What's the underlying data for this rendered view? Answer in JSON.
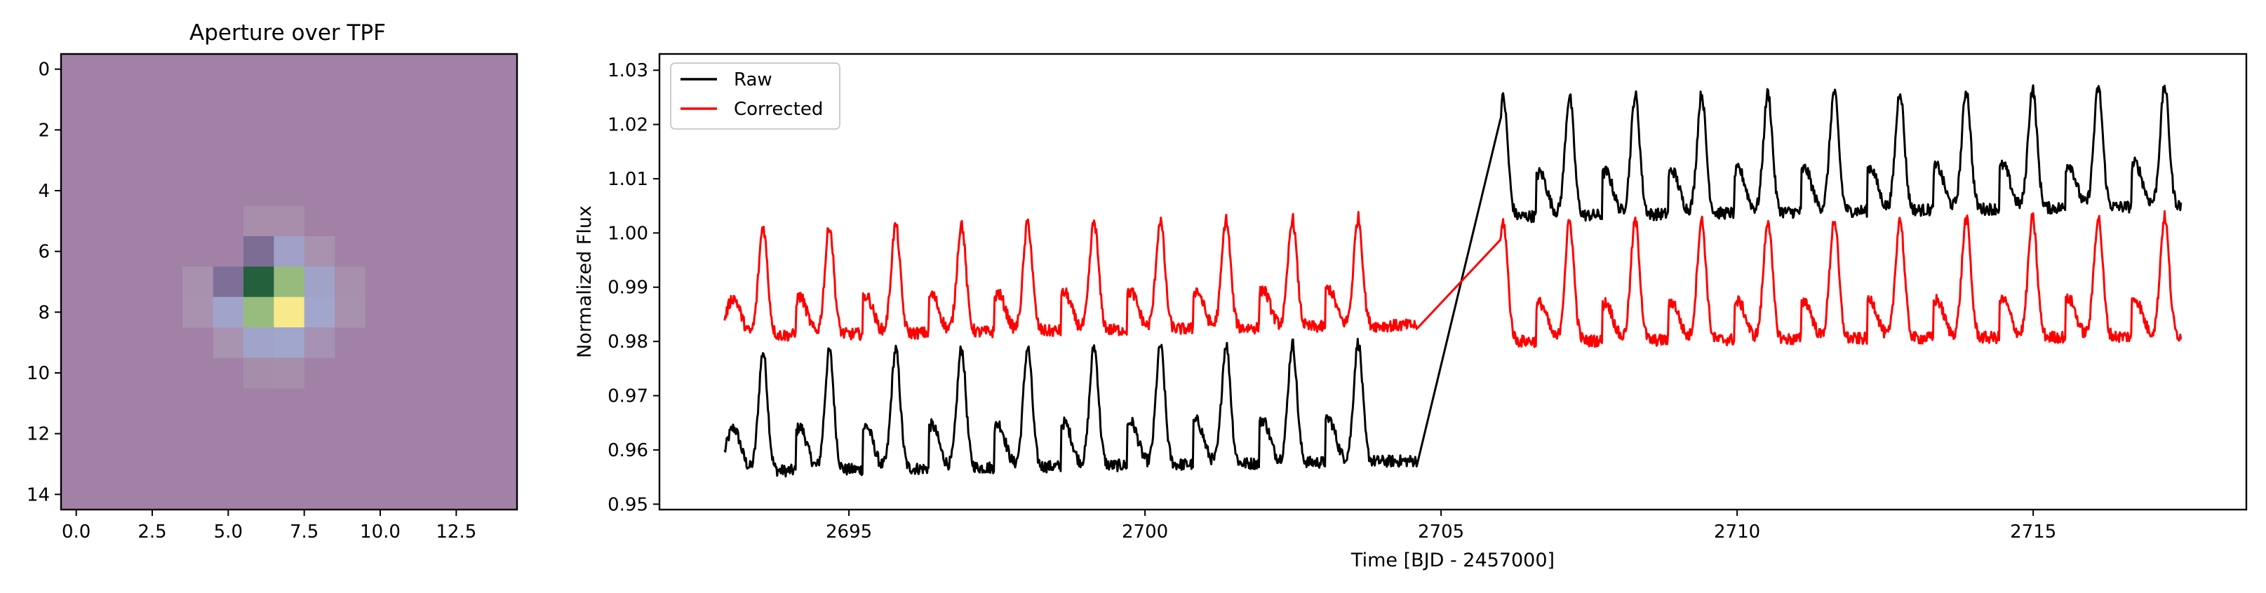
{
  "chart_data": [
    {
      "type": "heatmap",
      "title": "Aperture over TPF",
      "x_ticks": [
        "0.0",
        "2.5",
        "5.0",
        "7.5",
        "10.0",
        "12.5"
      ],
      "y_ticks": [
        "0",
        "2",
        "4",
        "6",
        "8",
        "10",
        "12",
        "14"
      ],
      "xlim": [
        -0.5,
        14.5
      ],
      "ylim": [
        14.5,
        -0.5
      ],
      "background_color": "#a181a6",
      "cells": [
        {
          "col": 6,
          "row": 5,
          "color": "#a88eab"
        },
        {
          "col": 7,
          "row": 5,
          "color": "#a88eab"
        },
        {
          "col": 6,
          "row": 6,
          "color": "#7b6d93"
        },
        {
          "col": 7,
          "row": 6,
          "color": "#a0a0c9"
        },
        {
          "col": 8,
          "row": 6,
          "color": "#a892b0"
        },
        {
          "col": 4,
          "row": 7,
          "color": "#a791ae"
        },
        {
          "col": 5,
          "row": 7,
          "color": "#7d6f98"
        },
        {
          "col": 6,
          "row": 7,
          "color": "#25603c"
        },
        {
          "col": 7,
          "row": 7,
          "color": "#97bb7c"
        },
        {
          "col": 8,
          "row": 7,
          "color": "#a0a2c8"
        },
        {
          "col": 9,
          "row": 7,
          "color": "#a78fad"
        },
        {
          "col": 4,
          "row": 8,
          "color": "#a892af"
        },
        {
          "col": 5,
          "row": 8,
          "color": "#a1a4ca"
        },
        {
          "col": 6,
          "row": 8,
          "color": "#98bb7e"
        },
        {
          "col": 7,
          "row": 8,
          "color": "#f8e98a"
        },
        {
          "col": 8,
          "row": 8,
          "color": "#a3a6cc"
        },
        {
          "col": 9,
          "row": 8,
          "color": "#a891af"
        },
        {
          "col": 5,
          "row": 9,
          "color": "#a893b1"
        },
        {
          "col": 6,
          "row": 9,
          "color": "#a0a4cb"
        },
        {
          "col": 7,
          "row": 9,
          "color": "#a0a6cc"
        },
        {
          "col": 8,
          "row": 9,
          "color": "#a692b2"
        },
        {
          "col": 6,
          "row": 10,
          "color": "#a68eaa"
        },
        {
          "col": 7,
          "row": 10,
          "color": "#a78eab"
        }
      ]
    },
    {
      "type": "line",
      "title": "",
      "xlabel": "Time [BJD - 2457000]",
      "ylabel": "Normalized Flux",
      "xlim": [
        2691.8,
        2718.6
      ],
      "ylim": [
        0.949,
        1.033
      ],
      "x_ticks": [
        "2695",
        "2700",
        "2705",
        "2710",
        "2715"
      ],
      "y_ticks": [
        "0.95",
        "0.96",
        "0.97",
        "0.98",
        "0.99",
        "1.00",
        "1.01",
        "1.02",
        "1.03"
      ],
      "legend": {
        "placement": "upper-left",
        "entries": [
          "Raw",
          "Corrected"
        ]
      },
      "series": [
        {
          "name": "Raw",
          "color": "#000000",
          "time_range": [
            2692.9,
            2717.5
          ],
          "gap": [
            2704.6,
            2706.0
          ],
          "period_days": 1.118,
          "peak_times": [
            2693.55,
            2694.67,
            2695.79,
            2696.9,
            2698.02,
            2699.14,
            2700.26,
            2701.37,
            2702.49,
            2703.6,
            2706.05,
            2707.17,
            2708.28,
            2709.4,
            2710.52,
            2711.64,
            2712.75,
            2713.87,
            2714.99,
            2716.1,
            2717.22
          ],
          "segment_1": {
            "baseline_start": 0.956,
            "baseline_end": 0.958,
            "amplitude": 0.022,
            "secondary_bump": 0.008
          },
          "segment_2": {
            "baseline_start": 1.003,
            "baseline_end": 1.005,
            "amplitude": 0.022,
            "secondary_bump": 0.008
          }
        },
        {
          "name": "Corrected",
          "color": "#ff0000",
          "time_range": [
            2692.9,
            2717.5
          ],
          "gap": [
            2704.6,
            2706.0
          ],
          "period_days": 1.118,
          "peak_times": [
            2693.55,
            2694.67,
            2695.79,
            2696.9,
            2698.02,
            2699.14,
            2700.26,
            2701.37,
            2702.49,
            2703.6,
            2706.05,
            2707.17,
            2708.28,
            2709.4,
            2710.52,
            2711.64,
            2712.75,
            2713.87,
            2714.99,
            2716.1,
            2717.22
          ],
          "segment_1": {
            "baseline_start": 0.981,
            "baseline_end": 0.983,
            "amplitude": 0.02,
            "secondary_bump": 0.007
          },
          "segment_2": {
            "baseline_start": 0.98,
            "baseline_end": 0.981,
            "amplitude": 0.022,
            "secondary_bump": 0.007
          }
        }
      ]
    }
  ]
}
